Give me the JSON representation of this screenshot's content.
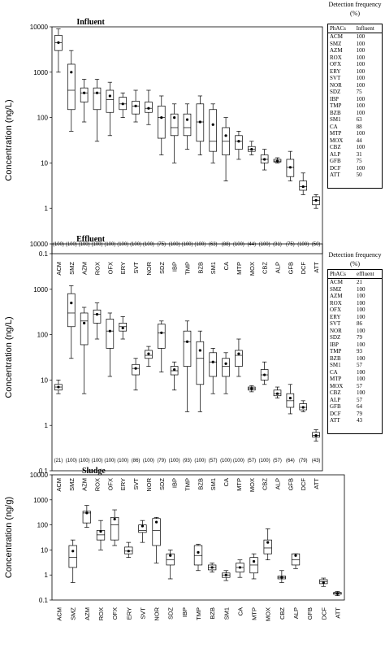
{
  "categories": [
    "ACM",
    "SMZ",
    "AZM",
    "ROX",
    "OFX",
    "ERY",
    "SVT",
    "NOR",
    "SDZ",
    "IBP",
    "TMP",
    "BZB",
    "SM1",
    "CA",
    "MTP",
    "MOX",
    "CBZ",
    "ALP",
    "GFB",
    "DCF",
    "ATT"
  ],
  "detection_table_title": "Detection frequency (%)",
  "table_header_col1": "PhACs",
  "chart_data": [
    {
      "type": "box",
      "title": "Influent",
      "ylabel": "Concentration (ng/L)",
      "yscale": "log",
      "ylim": [
        0.1,
        10000
      ],
      "yticks": [
        "0.1",
        "1",
        "10",
        "100",
        "1000",
        "10000"
      ],
      "table_header_col2": "Influent",
      "frequency_labels": [
        "(100)",
        "(100)",
        "(100)",
        "(100)",
        "(100)",
        "(100)",
        "(100)",
        "(100)",
        "(75)",
        "(100)",
        "(100)",
        "(100)",
        "(63)",
        "(88)",
        "(100)",
        "(44)",
        "(100)",
        "(31)",
        "(75)",
        "(100)",
        "(50)"
      ],
      "frequency_table": [
        "100",
        "100",
        "100",
        "100",
        "100",
        "100",
        "100",
        "100",
        "75",
        "100",
        "100",
        "100",
        "63",
        "88",
        "100",
        "44",
        "100",
        "31",
        "75",
        "100",
        "50"
      ],
      "boxes": [
        {
          "min": 1000,
          "q1": 3000,
          "median": 4500,
          "q3": 6500,
          "max": 9000,
          "mean": 4500
        },
        {
          "min": 50,
          "q1": 150,
          "median": 400,
          "q3": 1500,
          "max": 3000,
          "mean": 1000
        },
        {
          "min": 80,
          "q1": 220,
          "median": 350,
          "q3": 450,
          "max": 700,
          "mean": 350
        },
        {
          "min": 30,
          "q1": 150,
          "median": 350,
          "q3": 450,
          "max": 700,
          "mean": 350
        },
        {
          "min": 40,
          "q1": 130,
          "median": 250,
          "q3": 400,
          "max": 600,
          "mean": 300
        },
        {
          "min": 100,
          "q1": 150,
          "median": 200,
          "q3": 280,
          "max": 350,
          "mean": 200
        },
        {
          "min": 80,
          "q1": 120,
          "median": 180,
          "q3": 230,
          "max": 400,
          "mean": 180
        },
        {
          "min": 70,
          "q1": 130,
          "median": 160,
          "q3": 220,
          "max": 400,
          "mean": 160
        },
        {
          "min": 15,
          "q1": 35,
          "median": 100,
          "q3": 180,
          "max": 300,
          "mean": 100
        },
        {
          "min": 10,
          "q1": 40,
          "median": 60,
          "q3": 120,
          "max": 200,
          "mean": 100
        },
        {
          "min": 20,
          "q1": 40,
          "median": 60,
          "q3": 120,
          "max": 200,
          "mean": 90
        },
        {
          "min": 15,
          "q1": 30,
          "median": 80,
          "q3": 200,
          "max": 300,
          "mean": 80
        },
        {
          "min": 10,
          "q1": 18,
          "median": 30,
          "q3": 150,
          "max": 200,
          "mean": 70
        },
        {
          "min": 4,
          "q1": 15,
          "median": 30,
          "q3": 60,
          "max": 100,
          "mean": 40
        },
        {
          "min": 12,
          "q1": 20,
          "median": 30,
          "q3": 40,
          "max": 50,
          "mean": 30
        },
        {
          "min": 15,
          "q1": 18,
          "median": 20,
          "q3": 23,
          "max": 30,
          "mean": 20
        },
        {
          "min": 7,
          "q1": 10,
          "median": 12,
          "q3": 15,
          "max": 20,
          "mean": 12
        },
        {
          "min": 10,
          "q1": 10.5,
          "median": 11,
          "q3": 12,
          "max": 13,
          "mean": 11
        },
        {
          "min": 4,
          "q1": 5,
          "median": 8,
          "q3": 12,
          "max": 18,
          "mean": 8
        },
        {
          "min": 2,
          "q1": 2.5,
          "median": 3,
          "q3": 4,
          "max": 6,
          "mean": 3
        },
        {
          "min": 1,
          "q1": 1.2,
          "median": 1.5,
          "q3": 1.8,
          "max": 2,
          "mean": 1.5
        }
      ]
    },
    {
      "type": "box",
      "title": "Effluent",
      "ylabel": "Concentration (ng/L)",
      "yscale": "log",
      "ylim": [
        0.1,
        10000
      ],
      "yticks": [
        "0.1",
        "1",
        "10",
        "100",
        "1000",
        "10000"
      ],
      "table_header_col2": "effluent",
      "frequency_labels": [
        "(21)",
        "(100)",
        "(100)",
        "(100)",
        "(100)",
        "(100)",
        "(86)",
        "(100)",
        "(79)",
        "(100)",
        "(93)",
        "(100)",
        "(57)",
        "(100)",
        "(100)",
        "(57)",
        "(100)",
        "(57)",
        "(64)",
        "(79)",
        "(43)"
      ],
      "frequency_table": [
        "21",
        "100",
        "100",
        "100",
        "100",
        "100",
        "86",
        "100",
        "79",
        "100",
        "93",
        "100",
        "57",
        "100",
        "100",
        "57",
        "100",
        "57",
        "64",
        "79",
        "43"
      ],
      "boxes": [
        {
          "min": 5,
          "q1": 6,
          "median": 7,
          "q3": 8,
          "max": 10,
          "mean": 7
        },
        {
          "min": 30,
          "q1": 150,
          "median": 300,
          "q3": 800,
          "max": 1200,
          "mean": 500
        },
        {
          "min": 5,
          "q1": 60,
          "median": 200,
          "q3": 300,
          "max": 400,
          "mean": 180
        },
        {
          "min": 80,
          "q1": 180,
          "median": 280,
          "q3": 350,
          "max": 500,
          "mean": 280
        },
        {
          "min": 12,
          "q1": 50,
          "median": 120,
          "q3": 220,
          "max": 300,
          "mean": 120
        },
        {
          "min": 80,
          "q1": 120,
          "median": 150,
          "q3": 180,
          "max": 250,
          "mean": 140
        },
        {
          "min": 6,
          "q1": 13,
          "median": 18,
          "q3": 22,
          "max": 30,
          "mean": 18
        },
        {
          "min": 20,
          "q1": 30,
          "median": 35,
          "q3": 45,
          "max": 55,
          "mean": 38
        },
        {
          "min": 15,
          "q1": 50,
          "median": 110,
          "q3": 170,
          "max": 200,
          "mean": 110
        },
        {
          "min": 6,
          "q1": 13,
          "median": 16,
          "q3": 20,
          "max": 25,
          "mean": 17
        },
        {
          "min": 2,
          "q1": 20,
          "median": 70,
          "q3": 120,
          "max": 200,
          "mean": 70
        },
        {
          "min": 2,
          "q1": 8,
          "median": 30,
          "q3": 70,
          "max": 120,
          "mean": 45
        },
        {
          "min": 5,
          "q1": 12,
          "median": 25,
          "q3": 40,
          "max": 50,
          "mean": 25
        },
        {
          "min": 5,
          "q1": 12,
          "median": 20,
          "q3": 30,
          "max": 40,
          "mean": 23
        },
        {
          "min": 12,
          "q1": 20,
          "median": 35,
          "q3": 45,
          "max": 80,
          "mean": 38
        },
        {
          "min": 5.5,
          "q1": 6,
          "median": 6.5,
          "q3": 7,
          "max": 7.5,
          "mean": 6.5
        },
        {
          "min": 8,
          "q1": 10,
          "median": 13,
          "q3": 17,
          "max": 25,
          "mean": 13
        },
        {
          "min": 4,
          "q1": 4.5,
          "median": 5,
          "q3": 6,
          "max": 7,
          "mean": 5
        },
        {
          "min": 1.8,
          "q1": 2.5,
          "median": 3.5,
          "q3": 5,
          "max": 8,
          "mean": 4
        },
        {
          "min": 2,
          "q1": 2.2,
          "median": 2.5,
          "q3": 3,
          "max": 3.5,
          "mean": 2.5
        },
        {
          "min": 0.45,
          "q1": 0.55,
          "median": 0.6,
          "q3": 0.7,
          "max": 0.8,
          "mean": 0.6
        }
      ]
    },
    {
      "type": "box",
      "title": "Sludge",
      "ylabel": "Concentration (ng/g)",
      "yscale": "log",
      "ylim": [
        0.1,
        10000
      ],
      "yticks": [
        "0.1",
        "1",
        "10",
        "100",
        "1000",
        "10000"
      ],
      "boxes": [
        null,
        {
          "min": 0.5,
          "q1": 2,
          "median": 5,
          "q3": 15,
          "max": 25,
          "mean": 9
        },
        {
          "min": 80,
          "q1": 120,
          "median": 300,
          "q3": 350,
          "max": 600,
          "mean": 300
        },
        {
          "min": 10,
          "q1": 25,
          "median": 40,
          "q3": 60,
          "max": 150,
          "mean": 55
        },
        {
          "min": 15,
          "q1": 25,
          "median": 100,
          "q3": 200,
          "max": 400,
          "mean": 170
        },
        {
          "min": 5,
          "q1": 7,
          "median": 9,
          "q3": 13,
          "max": 20,
          "mean": 9
        },
        {
          "min": 20,
          "q1": 50,
          "median": 60,
          "q3": 100,
          "max": 150,
          "mean": 90
        },
        {
          "min": 3,
          "q1": 15,
          "median": 60,
          "q3": 180,
          "max": 200,
          "mean": 130
        },
        {
          "min": 0.7,
          "q1": 2.5,
          "median": 4,
          "q3": 7,
          "max": 10,
          "mean": 6
        },
        null,
        {
          "min": 1.5,
          "q1": 2.5,
          "median": 6,
          "q3": 15,
          "max": 17,
          "mean": 8
        },
        {
          "min": 1.3,
          "q1": 1.6,
          "median": 2,
          "q3": 2.5,
          "max": 3,
          "mean": 2
        },
        {
          "min": 0.6,
          "q1": 0.8,
          "median": 1,
          "q3": 1.2,
          "max": 1.5,
          "mean": 1
        },
        {
          "min": 0.8,
          "q1": 1.3,
          "median": 2,
          "q3": 3,
          "max": 4,
          "mean": 2
        },
        {
          "min": 0.7,
          "q1": 1.2,
          "median": 2.5,
          "q3": 5,
          "max": 7,
          "mean": 3.5
        },
        {
          "min": 4,
          "q1": 7,
          "median": 12,
          "q3": 25,
          "max": 70,
          "mean": 20
        },
        {
          "min": 0.5,
          "q1": 0.7,
          "median": 0.8,
          "q3": 0.9,
          "max": 1.5,
          "mean": 0.8
        },
        {
          "min": 1.8,
          "q1": 2.5,
          "median": 4,
          "q3": 7,
          "max": 7,
          "mean": 6
        },
        null,
        {
          "min": 0.35,
          "q1": 0.45,
          "median": 0.55,
          "q3": 0.65,
          "max": 0.75,
          "mean": 0.5
        },
        {
          "min": 0.15,
          "q1": 0.17,
          "median": 0.19,
          "q3": 0.2,
          "max": 0.22,
          "mean": 0.18
        }
      ]
    }
  ]
}
